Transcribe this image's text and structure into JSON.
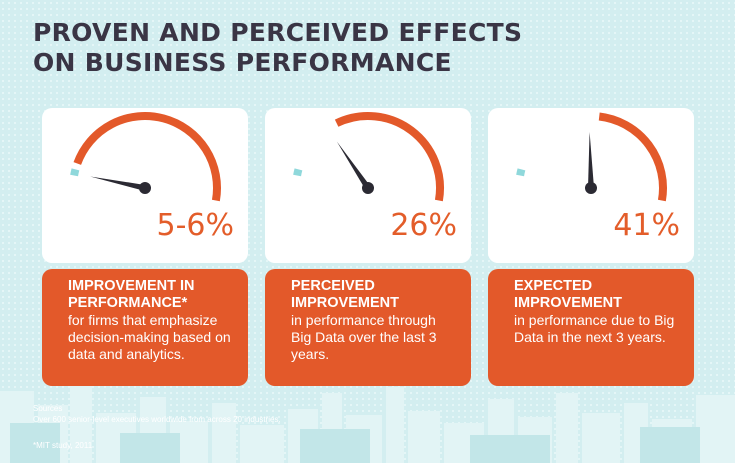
{
  "title": {
    "line1": "PROVEN AND PERCEIVED EFFECTS",
    "line2": "ON BUSINESS PERFORMANCE"
  },
  "colors": {
    "accent_orange": "#e3592a",
    "gauge_blue": "#8fd8db",
    "needle": "#2b2a33",
    "title_text": "#3a3545"
  },
  "cards": [
    {
      "value": "5-6%",
      "gauge_level": 0.055,
      "heading": "IMPROVEMENT IN PERFORMANCE*",
      "body": "for firms that emphasize decision-making based on data and analytics."
    },
    {
      "value": "26%",
      "gauge_level": 0.26,
      "heading": "PERCEIVED IMPROVEMENT",
      "body": "in performance through Big Data over the last 3 years."
    },
    {
      "value": "41%",
      "gauge_level": 0.41,
      "heading": "EXPECTED IMPROVEMENT",
      "body": "in performance due to Big Data in the next 3 years."
    }
  ],
  "footer": {
    "sources_label": "Sources",
    "sources_text": "Over 600 senior-level executives worldwide from across 20 industries.",
    "note": "*MIT study, 2011"
  }
}
